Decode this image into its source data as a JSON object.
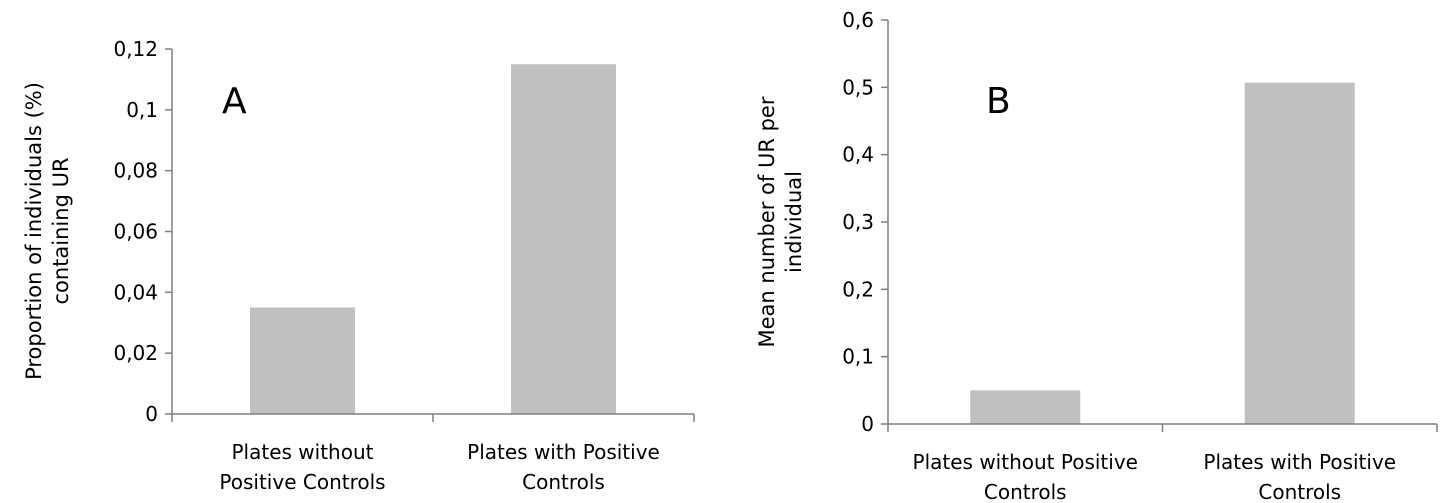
{
  "chart_data": [
    {
      "type": "bar",
      "panel_label": "A",
      "categories": [
        [
          "Plates without",
          "Positive Controls"
        ],
        [
          "Plates with Positive",
          "Controls"
        ]
      ],
      "values": [
        0.035,
        0.115
      ],
      "ylabel": [
        "Proportion of individuals (%)",
        "containing UR"
      ],
      "ylim": [
        0,
        0.12
      ],
      "yticks": [
        "0",
        "0,02",
        "0,04",
        "0,06",
        "0,08",
        "0,1",
        "0,12"
      ],
      "grid": false,
      "legend": "none",
      "color": "#c0c0c0"
    },
    {
      "type": "bar",
      "panel_label": "B",
      "categories": [
        [
          "Plates without Positive",
          "Controls"
        ],
        [
          "Plates with Positive",
          "Controls"
        ]
      ],
      "values": [
        0.05,
        0.507
      ],
      "ylabel": [
        "Mean number of UR per",
        "individual"
      ],
      "ylim": [
        0,
        0.6
      ],
      "yticks": [
        "0",
        "0,1",
        "0,2",
        "0,3",
        "0,4",
        "0,5",
        "0,6"
      ],
      "grid": false,
      "legend": "none",
      "color": "#c0c0c0"
    }
  ]
}
